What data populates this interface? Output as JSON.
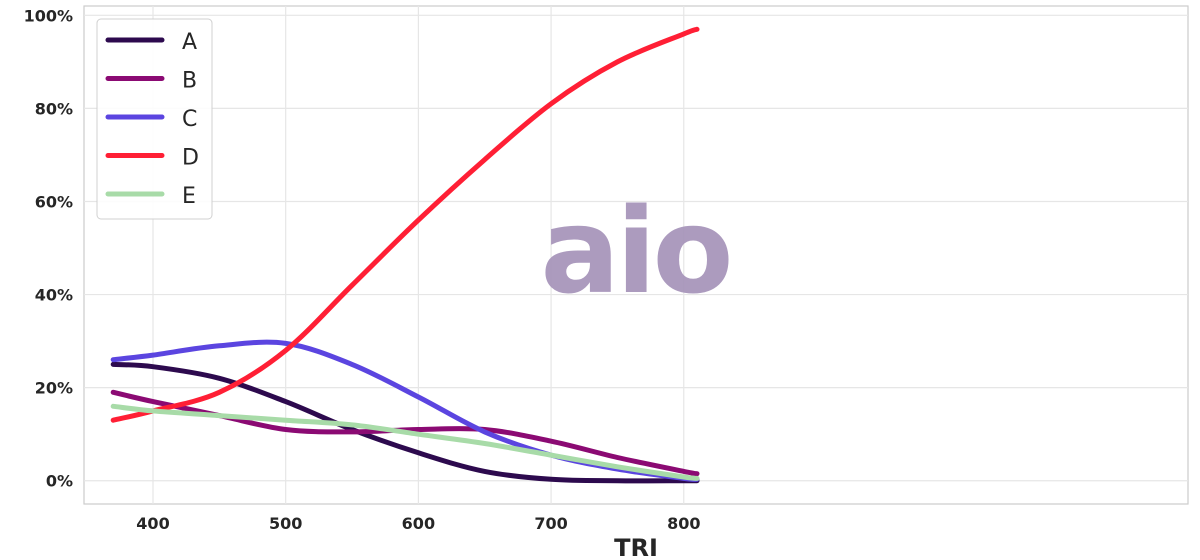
{
  "chart_data": {
    "type": "line",
    "title": "",
    "xlabel": "TRI",
    "ylabel": "",
    "xlim": [
      348,
      1180
    ],
    "ylim": [
      -0.05,
      1.02
    ],
    "xticks": [
      400,
      500,
      600,
      700,
      800
    ],
    "xtick_labels": [
      "400",
      "500",
      "600",
      "700",
      "800"
    ],
    "yticks": [
      0,
      0.2,
      0.4,
      0.6,
      0.8,
      1.0
    ],
    "ytick_labels": [
      "0%",
      "20%",
      "40%",
      "60%",
      "80%",
      "100%"
    ],
    "grid": true,
    "legend_position": "top-left",
    "x": [
      370,
      400,
      450,
      500,
      550,
      600,
      650,
      700,
      750,
      800,
      810
    ],
    "series": [
      {
        "name": "A",
        "color": "#2d0a4e",
        "values": [
          0.25,
          0.245,
          0.22,
          0.17,
          0.11,
          0.06,
          0.02,
          0.003,
          0.0,
          0.0,
          0.0
        ]
      },
      {
        "name": "B",
        "color": "#8b0a73",
        "values": [
          0.19,
          0.17,
          0.14,
          0.11,
          0.105,
          0.11,
          0.11,
          0.085,
          0.05,
          0.02,
          0.015
        ]
      },
      {
        "name": "C",
        "color": "#5b45e0",
        "values": [
          0.26,
          0.27,
          0.29,
          0.295,
          0.25,
          0.18,
          0.105,
          0.055,
          0.025,
          0.005,
          0.003
        ]
      },
      {
        "name": "D",
        "color": "#ff1f35",
        "values": [
          0.13,
          0.15,
          0.19,
          0.28,
          0.42,
          0.56,
          0.69,
          0.81,
          0.9,
          0.96,
          0.97
        ]
      },
      {
        "name": "E",
        "color": "#a8dba8",
        "values": [
          0.16,
          0.15,
          0.14,
          0.13,
          0.12,
          0.1,
          0.08,
          0.055,
          0.03,
          0.008,
          0.005
        ]
      }
    ]
  },
  "watermark": {
    "text": "aio",
    "color": "#a491b8"
  }
}
